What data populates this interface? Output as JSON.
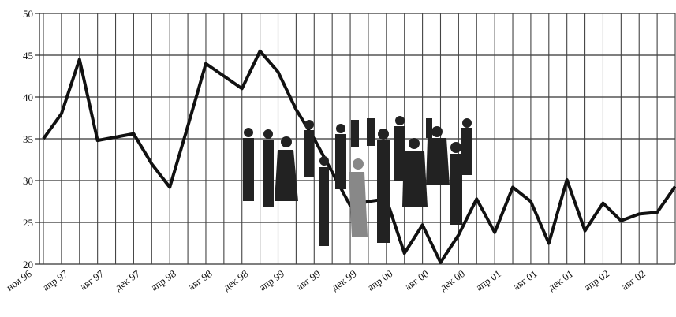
{
  "chart_data": {
    "type": "line",
    "categories": [
      "ноя 96",
      null,
      "апр 97",
      null,
      "авг 97",
      null,
      "дек 97",
      null,
      "апр 98",
      null,
      "авг 98",
      null,
      "дек 98",
      null,
      "апр 99",
      null,
      "авг 99",
      null,
      "дек 99",
      null,
      "апр 00",
      null,
      "авг 00",
      null,
      "дек 00",
      null,
      "апр 01",
      null,
      "авг 01",
      null,
      "дек 01",
      null,
      "апр 02",
      null,
      "авг 02",
      null
    ],
    "values": [
      35,
      38,
      44.5,
      34.8,
      35.2,
      35.6,
      32,
      29.2,
      36.5,
      44,
      42.5,
      41,
      45.5,
      43,
      38.5,
      35,
      31,
      27,
      27.5,
      27.8,
      21.3,
      24.7,
      20.2,
      23.5,
      27.8,
      23.8,
      29.2,
      27.5,
      22.5,
      30.1,
      24,
      27.3,
      25.2,
      26,
      26.2,
      29.3
    ],
    "color": "#111111",
    "ylim": [
      20,
      50
    ],
    "yticks": [
      20,
      25,
      30,
      35,
      40,
      45,
      50
    ],
    "grid": true
  }
}
